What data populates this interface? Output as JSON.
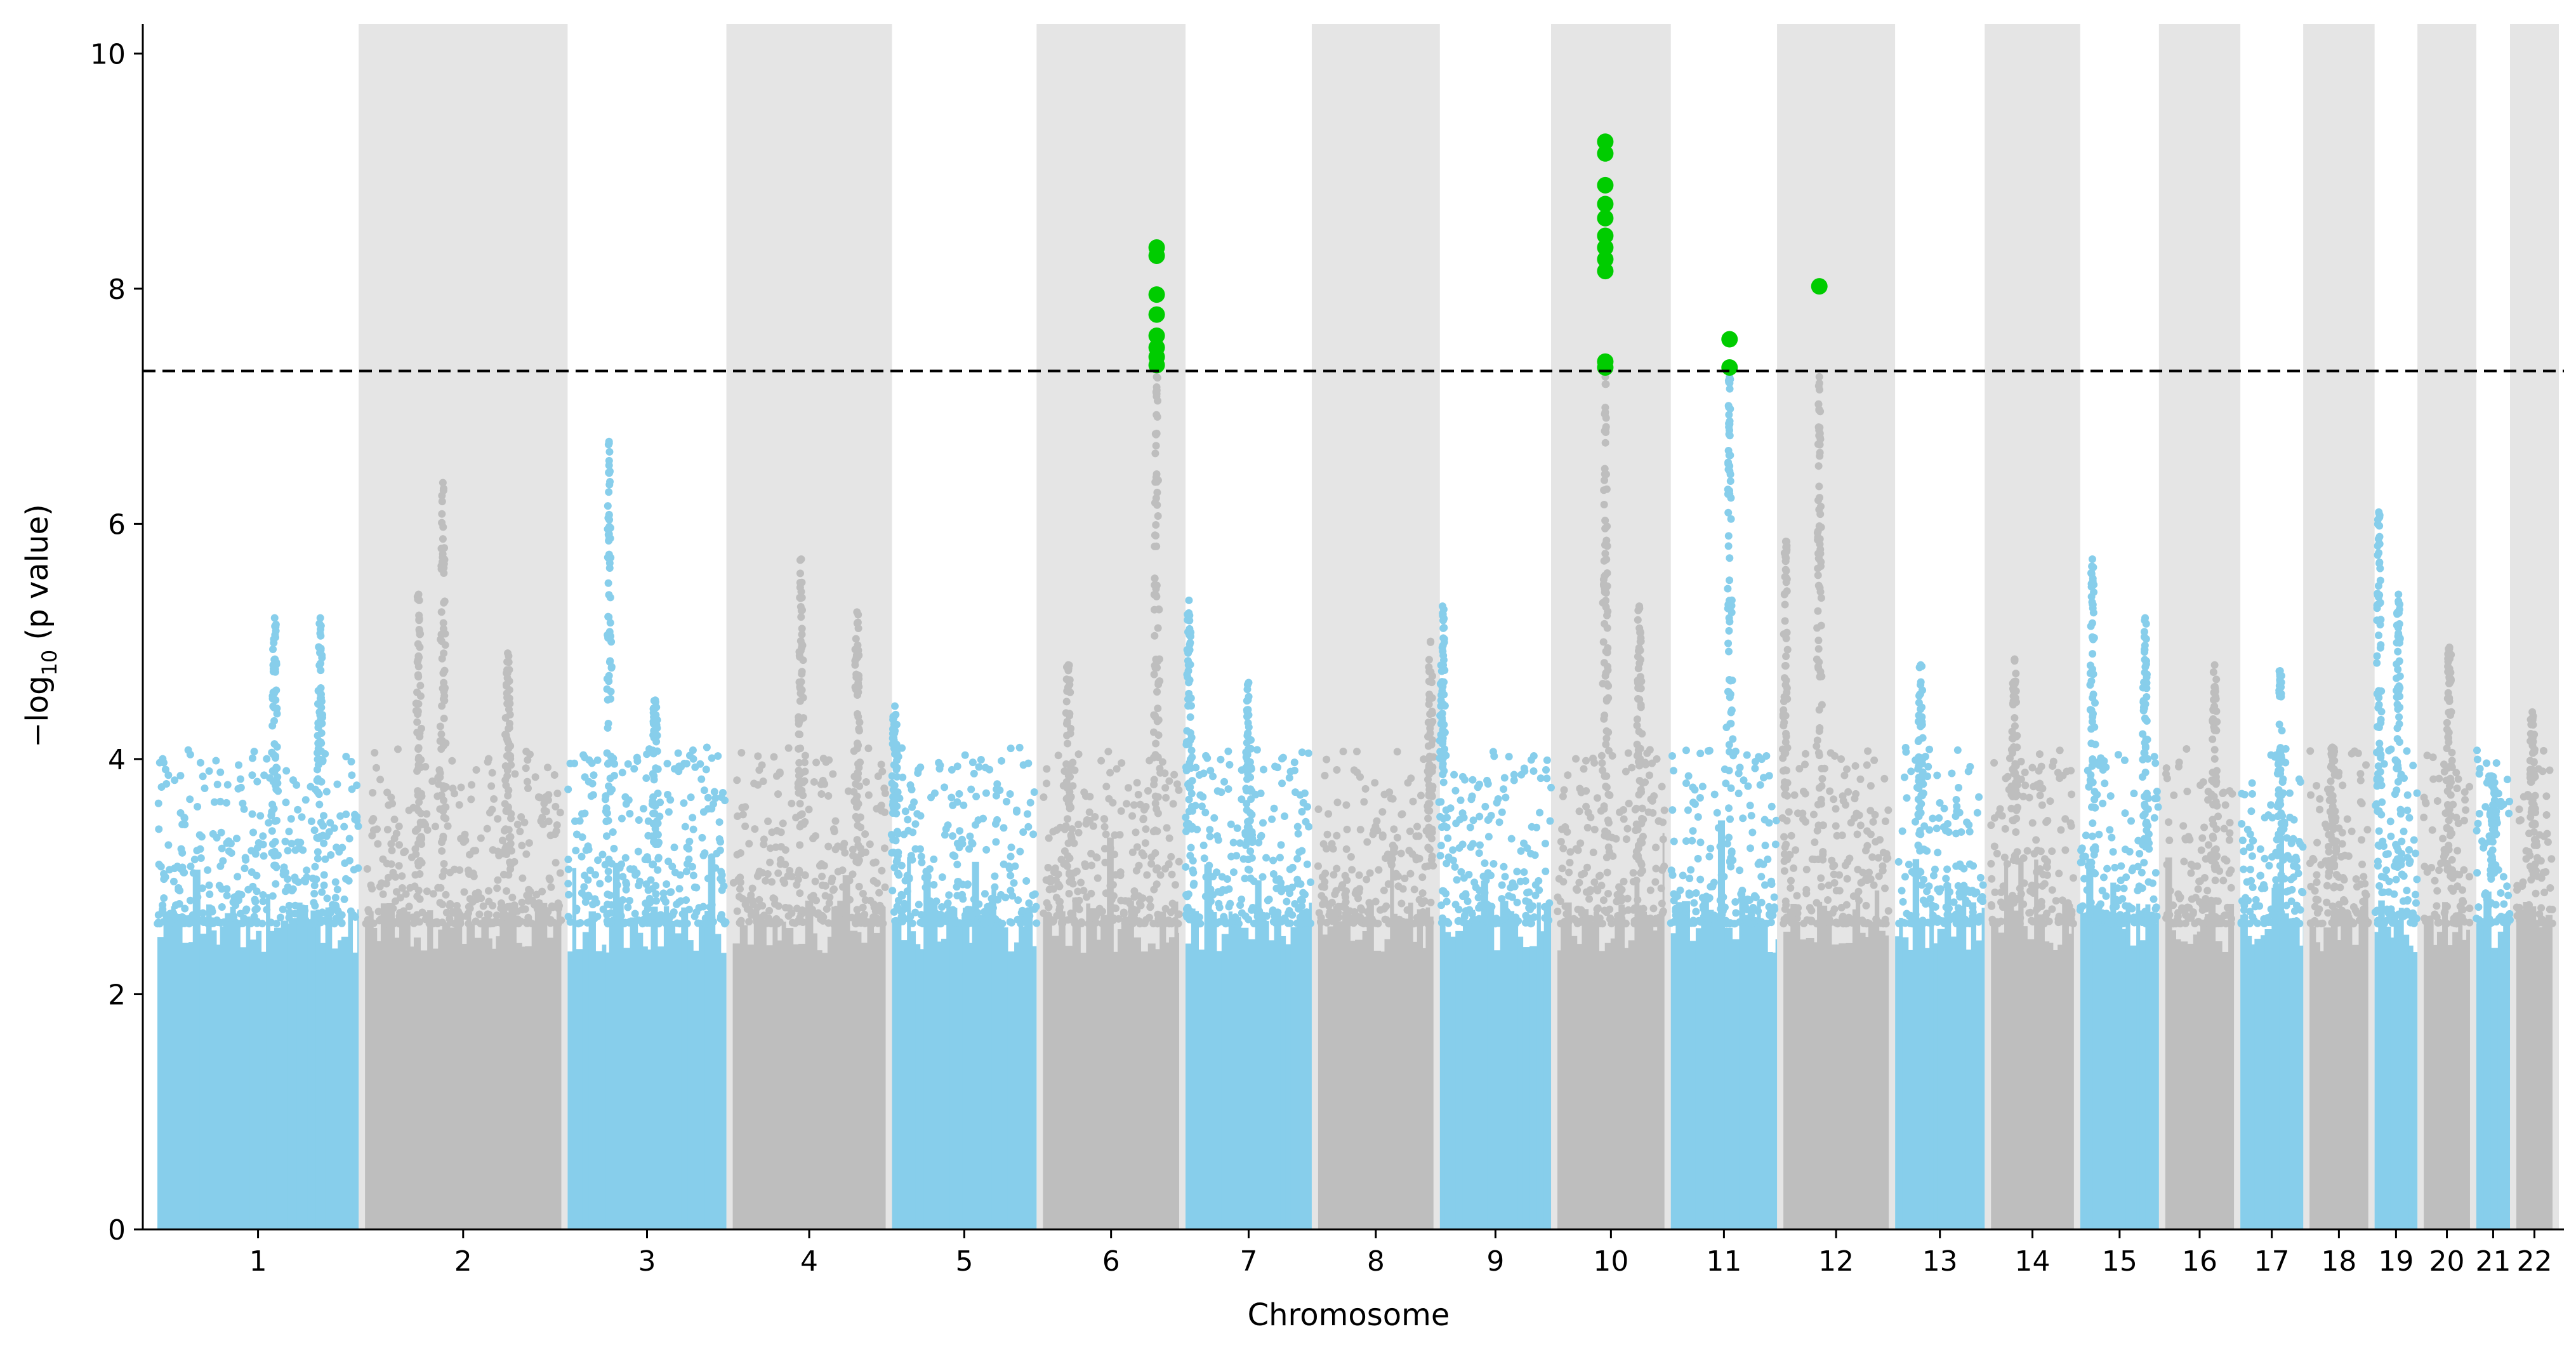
{
  "chart_data": {
    "type": "scatter",
    "title": "",
    "xlabel": "Chromosome",
    "ylabel_prefix": "−log",
    "ylabel_sub": "10",
    "ylabel_suffix": " (p value)",
    "ylim": [
      0,
      10.25
    ],
    "y_ticks": [
      0,
      2,
      4,
      6,
      8,
      10
    ],
    "grid": false,
    "significance_threshold": 7.3,
    "colors": {
      "odd_chromosome": "#87CEEB",
      "even_chromosome": "#BEBEBE",
      "band": "#E5E5E5",
      "significant": "#00CC00",
      "threshold_line": "#000000"
    },
    "chromosomes": [
      {
        "label": "1",
        "length": 249
      },
      {
        "label": "2",
        "length": 243
      },
      {
        "label": "3",
        "length": 198
      },
      {
        "label": "4",
        "length": 191
      },
      {
        "label": "5",
        "length": 181
      },
      {
        "label": "6",
        "length": 171
      },
      {
        "label": "7",
        "length": 159
      },
      {
        "label": "8",
        "length": 146
      },
      {
        "label": "9",
        "length": 141
      },
      {
        "label": "10",
        "length": 136
      },
      {
        "label": "11",
        "length": 135
      },
      {
        "label": "12",
        "length": 134
      },
      {
        "label": "13",
        "length": 115
      },
      {
        "label": "14",
        "length": 107
      },
      {
        "label": "15",
        "length": 102
      },
      {
        "label": "16",
        "length": 90
      },
      {
        "label": "17",
        "length": 83
      },
      {
        "label": "18",
        "length": 78
      },
      {
        "label": "19",
        "length": 59
      },
      {
        "label": "20",
        "length": 63
      },
      {
        "label": "21",
        "length": 48
      },
      {
        "label": "22",
        "length": 51
      }
    ],
    "peaks": [
      {
        "chr": "1",
        "pos": 0.58,
        "max": 5.2
      },
      {
        "chr": "1",
        "pos": 0.8,
        "max": 5.2
      },
      {
        "chr": "2",
        "pos": 0.28,
        "max": 5.4
      },
      {
        "chr": "2",
        "pos": 0.4,
        "max": 6.35
      },
      {
        "chr": "2",
        "pos": 0.72,
        "max": 4.9
      },
      {
        "chr": "3",
        "pos": 0.27,
        "max": 6.7
      },
      {
        "chr": "3",
        "pos": 0.55,
        "max": 4.5
      },
      {
        "chr": "4",
        "pos": 0.45,
        "max": 5.7
      },
      {
        "chr": "4",
        "pos": 0.8,
        "max": 5.25
      },
      {
        "chr": "5",
        "pos": 0.04,
        "max": 4.45
      },
      {
        "chr": "6",
        "pos": 0.2,
        "max": 4.8
      },
      {
        "chr": "6",
        "pos": 0.82,
        "max": 8.35
      },
      {
        "chr": "7",
        "pos": 0.05,
        "max": 5.35
      },
      {
        "chr": "7",
        "pos": 0.5,
        "max": 4.65
      },
      {
        "chr": "8",
        "pos": 0.95,
        "max": 5.0
      },
      {
        "chr": "9",
        "pos": 0.05,
        "max": 5.3
      },
      {
        "chr": "10",
        "pos": 0.45,
        "max": 9.25
      },
      {
        "chr": "10",
        "pos": 0.75,
        "max": 5.3
      },
      {
        "chr": "11",
        "pos": 0.55,
        "max": 7.55
      },
      {
        "chr": "12",
        "pos": 0.35,
        "max": 8.0
      },
      {
        "chr": "12",
        "pos": 0.05,
        "max": 5.85
      },
      {
        "chr": "13",
        "pos": 0.3,
        "max": 4.8
      },
      {
        "chr": "14",
        "pos": 0.3,
        "max": 4.85
      },
      {
        "chr": "15",
        "pos": 0.18,
        "max": 5.7
      },
      {
        "chr": "15",
        "pos": 0.8,
        "max": 5.2
      },
      {
        "chr": "16",
        "pos": 0.7,
        "max": 4.8
      },
      {
        "chr": "17",
        "pos": 0.62,
        "max": 4.75
      },
      {
        "chr": "18",
        "pos": 0.4,
        "max": 4.1
      },
      {
        "chr": "19",
        "pos": 0.15,
        "max": 6.1
      },
      {
        "chr": "19",
        "pos": 0.55,
        "max": 5.4
      },
      {
        "chr": "20",
        "pos": 0.55,
        "max": 4.95
      },
      {
        "chr": "21",
        "pos": 0.5,
        "max": 3.85
      },
      {
        "chr": "22",
        "pos": 0.45,
        "max": 4.4
      }
    ],
    "significant_hits": [
      {
        "chr": "6",
        "pos": 0.82,
        "y": [
          8.35,
          8.28,
          7.95,
          7.78,
          7.6,
          7.5,
          7.42,
          7.35
        ]
      },
      {
        "chr": "10",
        "pos": 0.45,
        "y": [
          9.25,
          9.15,
          8.88,
          8.72,
          8.6,
          8.45,
          8.35,
          8.25,
          8.15,
          7.38,
          7.33
        ]
      },
      {
        "chr": "11",
        "pos": 0.55,
        "y": [
          7.57,
          7.33
        ]
      },
      {
        "chr": "12",
        "pos": 0.35,
        "y": [
          8.02
        ]
      }
    ]
  }
}
